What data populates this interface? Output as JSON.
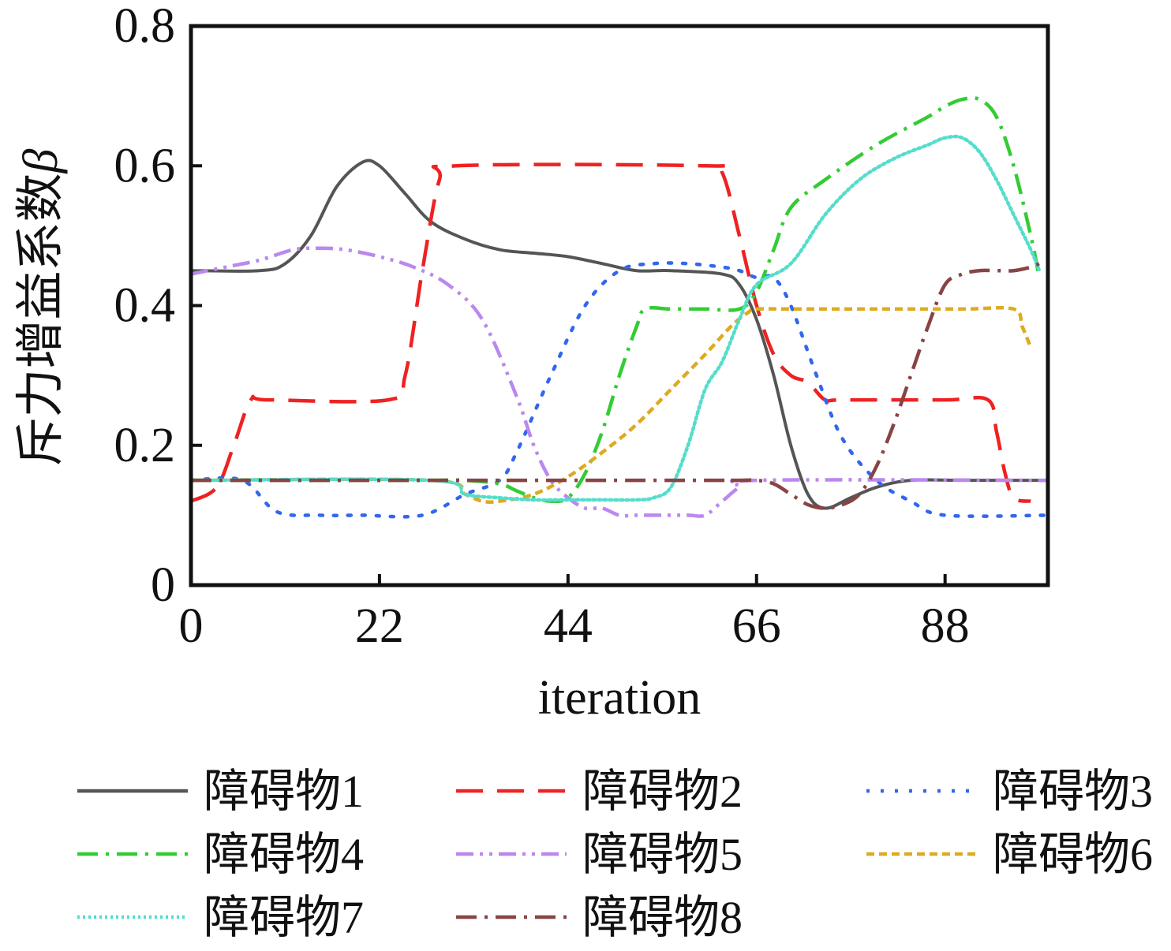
{
  "chart_data": {
    "type": "line",
    "title": "",
    "xlabel": "iteration",
    "ylabel": "斥力增益系数",
    "ylabel_symbol": "β",
    "xlim": [
      0,
      100
    ],
    "ylim": [
      0,
      0.8
    ],
    "xticks": [
      0,
      22,
      44,
      66,
      88
    ],
    "yticks": [
      0,
      0.2,
      0.4,
      0.6,
      0.8
    ],
    "ytick_labels": [
      "0",
      "0.2",
      "0.4",
      "0.6",
      "0.8"
    ],
    "xtick_labels": [
      "0",
      "22",
      "44",
      "66",
      "88"
    ],
    "legend_position": "bottom",
    "series": [
      {
        "name": "障碍物1",
        "color": "#555555",
        "dash": "solid",
        "x": [
          0,
          8,
          11,
          14,
          17,
          20,
          22,
          25,
          28,
          32,
          36,
          40,
          44,
          48,
          52,
          56,
          62,
          64,
          66,
          68,
          70,
          72,
          74,
          77,
          80,
          84,
          90,
          100
        ],
        "y": [
          0.45,
          0.45,
          0.46,
          0.5,
          0.57,
          0.605,
          0.6,
          0.56,
          0.52,
          0.495,
          0.48,
          0.475,
          0.47,
          0.46,
          0.45,
          0.45,
          0.445,
          0.43,
          0.38,
          0.3,
          0.2,
          0.13,
          0.11,
          0.125,
          0.14,
          0.15,
          0.15,
          0.15
        ]
      },
      {
        "name": "障碍物2",
        "color": "#ee2222",
        "dash": "long-dash",
        "x": [
          0,
          3,
          5,
          7,
          9,
          23,
          25,
          27,
          29,
          31,
          60,
          62,
          64,
          66,
          68,
          70,
          72,
          74,
          76,
          88,
          93,
          94,
          95,
          96,
          98
        ],
        "y": [
          0.12,
          0.14,
          0.2,
          0.265,
          0.265,
          0.265,
          0.3,
          0.45,
          0.58,
          0.6,
          0.6,
          0.59,
          0.5,
          0.4,
          0.33,
          0.3,
          0.29,
          0.265,
          0.265,
          0.265,
          0.265,
          0.22,
          0.16,
          0.125,
          0.12
        ]
      },
      {
        "name": "障碍物3",
        "color": "#3366ee",
        "dash": "dot",
        "x": [
          0,
          6,
          10,
          15,
          20,
          27,
          32,
          36,
          38,
          42,
          46,
          50,
          54,
          58,
          62,
          64,
          66,
          68,
          70,
          73,
          76,
          80,
          84,
          88,
          100
        ],
        "y": [
          0.15,
          0.15,
          0.105,
          0.1,
          0.1,
          0.1,
          0.13,
          0.15,
          0.19,
          0.3,
          0.4,
          0.45,
          0.46,
          0.46,
          0.455,
          0.45,
          0.44,
          0.44,
          0.4,
          0.3,
          0.21,
          0.15,
          0.12,
          0.1,
          0.1
        ]
      },
      {
        "name": "障碍物4",
        "color": "#33cc33",
        "dash": "dash-dot",
        "x": [
          0,
          20,
          28,
          32,
          36,
          38,
          40,
          42,
          44,
          46,
          48,
          50,
          52,
          53,
          56,
          60,
          64,
          66,
          68,
          70,
          74,
          80,
          86,
          88,
          90,
          92,
          94,
          96,
          98,
          99
        ],
        "y": [
          0.15,
          0.15,
          0.15,
          0.15,
          0.145,
          0.135,
          0.125,
          0.12,
          0.125,
          0.16,
          0.22,
          0.3,
          0.37,
          0.395,
          0.395,
          0.395,
          0.395,
          0.42,
          0.48,
          0.54,
          0.58,
          0.63,
          0.67,
          0.685,
          0.695,
          0.695,
          0.67,
          0.6,
          0.5,
          0.44
        ]
      },
      {
        "name": "障碍物5",
        "color": "#bb88ee",
        "dash": "dash-dot-dot",
        "x": [
          0,
          4,
          8,
          12,
          15,
          18,
          22,
          26,
          30,
          34,
          38,
          40,
          42,
          44,
          46,
          48,
          50,
          52,
          54,
          58,
          60,
          62,
          64,
          66,
          100
        ],
        "y": [
          0.445,
          0.455,
          0.465,
          0.48,
          0.482,
          0.48,
          0.47,
          0.455,
          0.43,
          0.38,
          0.27,
          0.2,
          0.15,
          0.125,
          0.11,
          0.11,
          0.1,
          0.1,
          0.1,
          0.1,
          0.1,
          0.12,
          0.14,
          0.15,
          0.15
        ]
      },
      {
        "name": "障碍物6",
        "color": "#ddaa22",
        "dash": "short-dash",
        "x": [
          0,
          28,
          32,
          34,
          36,
          40,
          44,
          48,
          52,
          56,
          60,
          63,
          65,
          66,
          70,
          80,
          90,
          96,
          97,
          98
        ],
        "y": [
          0.15,
          0.15,
          0.13,
          0.12,
          0.12,
          0.13,
          0.155,
          0.19,
          0.23,
          0.28,
          0.33,
          0.37,
          0.39,
          0.395,
          0.395,
          0.395,
          0.395,
          0.395,
          0.37,
          0.34
        ]
      },
      {
        "name": "障碍物7",
        "color": "#55ddcc",
        "dash": "fine-dot",
        "x": [
          0,
          28,
          32,
          36,
          40,
          44,
          48,
          52,
          54,
          56,
          58,
          60,
          62,
          64,
          66,
          70,
          74,
          78,
          82,
          86,
          88,
          90,
          92,
          94,
          96,
          98,
          99
        ],
        "y": [
          0.15,
          0.15,
          0.13,
          0.125,
          0.122,
          0.122,
          0.122,
          0.122,
          0.125,
          0.14,
          0.2,
          0.28,
          0.32,
          0.38,
          0.43,
          0.46,
          0.53,
          0.58,
          0.61,
          0.63,
          0.64,
          0.64,
          0.62,
          0.58,
          0.53,
          0.48,
          0.45
        ]
      },
      {
        "name": "障碍物8",
        "color": "#884444",
        "dash": "dash-dot",
        "x": [
          0,
          60,
          62,
          64,
          66,
          68,
          70,
          72,
          74,
          76,
          78,
          80,
          82,
          84,
          86,
          88,
          90,
          92,
          94,
          96,
          98,
          99
        ],
        "y": [
          0.15,
          0.15,
          0.15,
          0.15,
          0.15,
          0.145,
          0.13,
          0.115,
          0.11,
          0.115,
          0.13,
          0.17,
          0.23,
          0.3,
          0.37,
          0.43,
          0.445,
          0.45,
          0.45,
          0.45,
          0.455,
          0.46
        ]
      }
    ]
  }
}
